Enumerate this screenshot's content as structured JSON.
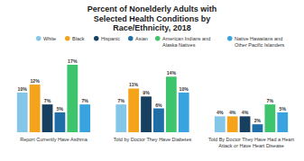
{
  "chart_data": {
    "type": "bar",
    "title": "Percent of Nonelderly Adults with Selected Health Conditions by Race/Ethnicity, 2018",
    "categories": [
      "Report Currently Have Asthma",
      "Told by Doctor They Have Diabetes",
      "Told By Doctor They Have Had a Heart Attack or Have Heart Disease"
    ],
    "series": [
      {
        "name": "White",
        "color": "#84c6e8",
        "values": [
          10,
          7,
          4
        ],
        "value_labels": [
          "10%",
          "7%",
          "4%"
        ]
      },
      {
        "name": "Black",
        "color": "#f6a31c",
        "values": [
          12,
          11,
          4
        ],
        "value_labels": [
          "12%",
          "11%",
          "4%"
        ]
      },
      {
        "name": "Hispanic",
        "color": "#173f5f",
        "values": [
          7,
          9,
          4
        ],
        "value_labels": [
          "7%",
          "9%",
          "4%"
        ]
      },
      {
        "name": "Asian",
        "color": "#1f6ea8",
        "values": [
          5,
          6,
          2
        ],
        "value_labels": [
          "5%",
          "6%",
          "2%"
        ]
      },
      {
        "name": "American Indians and Alaska Natives",
        "color": "#3ec46d",
        "values": [
          17,
          14,
          7
        ],
        "value_labels": [
          "17%",
          "14%",
          "7%"
        ]
      },
      {
        "name": "Native Hawaiians and Other Pacific Islanders",
        "color": "#38a3df",
        "values": [
          7,
          10,
          5
        ],
        "value_labels": [
          "7%",
          "10%",
          "5%"
        ]
      }
    ],
    "ylim": [
      0,
      17
    ],
    "data_labels": true,
    "tick_labels": "x",
    "grid": false,
    "legend": "top"
  }
}
